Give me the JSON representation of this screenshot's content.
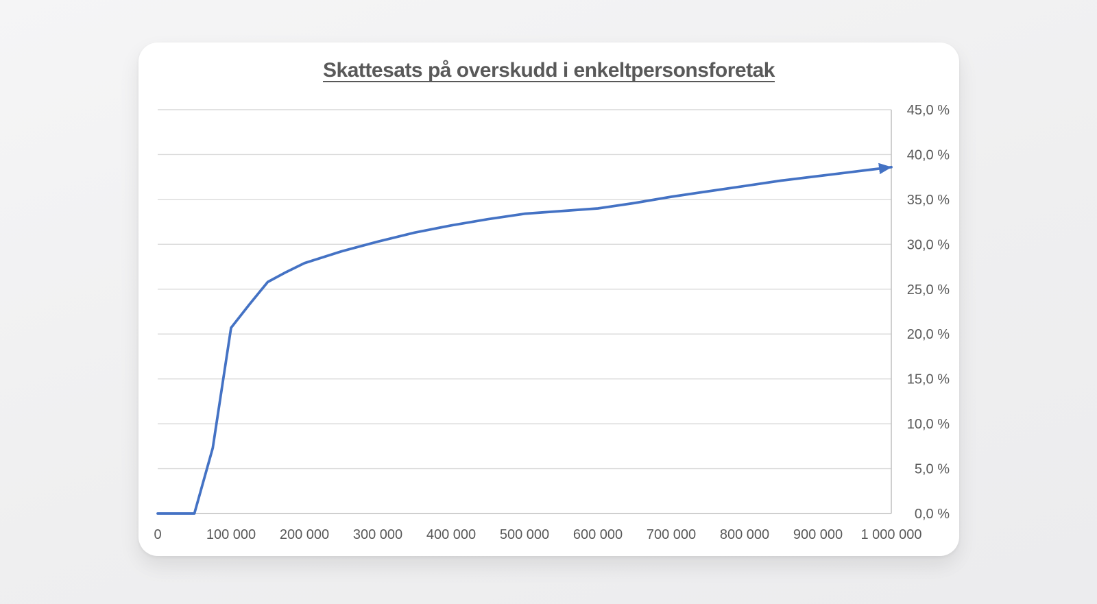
{
  "page": {
    "background": "#f0f0f1",
    "card_background": "#ffffff"
  },
  "chart_data": {
    "type": "line",
    "title": "Skattesats på overskudd i enkeltpersonsforetak",
    "x": [
      0,
      25000,
      50000,
      75000,
      100000,
      125000,
      150000,
      175000,
      200000,
      250000,
      300000,
      350000,
      400000,
      450000,
      500000,
      550000,
      600000,
      650000,
      700000,
      750000,
      800000,
      850000,
      900000,
      950000,
      1000000
    ],
    "y": [
      0.0,
      0.0,
      0.0,
      7.3,
      20.7,
      23.3,
      25.8,
      26.9,
      27.9,
      29.2,
      30.3,
      31.3,
      32.1,
      32.8,
      33.4,
      33.7,
      34.0,
      34.6,
      35.3,
      35.9,
      36.5,
      37.1,
      37.6,
      38.1,
      38.6
    ],
    "xlabel": "",
    "ylabel": "",
    "xlim": [
      0,
      1000000
    ],
    "ylim": [
      0,
      45
    ],
    "xtick_labels": [
      "0",
      "100 000",
      "200 000",
      "300 000",
      "400 000",
      "500 000",
      "600 000",
      "700 000",
      "800 000",
      "900 000",
      "1 000 000"
    ],
    "ytick_labels": [
      "0,0 %",
      "5,0 %",
      "10,0 %",
      "15,0 %",
      "20,0 %",
      "25,0 %",
      "30,0 %",
      "35,0 %",
      "40,0 %",
      "45,0 %"
    ],
    "y_axis_side": "right",
    "grid": true,
    "legend": "none",
    "arrow_end": true,
    "line_color": "#4472C4",
    "gridline_color": "#D9D9D9",
    "axis_color": "#BFBFBF",
    "label_color": "#595959",
    "title_color": "#595959"
  }
}
